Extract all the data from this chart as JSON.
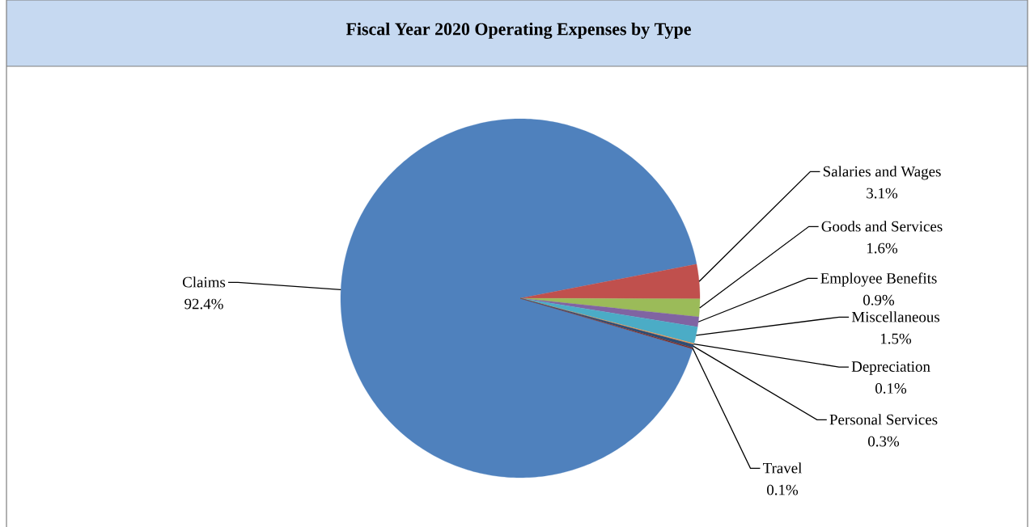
{
  "chart_data": {
    "type": "pie",
    "title": "Fiscal Year 2020 Operating Expenses by Type",
    "categories": [
      "Claims",
      "Salaries and Wages",
      "Goods and Services",
      "Employee Benefits",
      "Miscellaneous",
      "Depreciation",
      "Personal Services",
      "Travel"
    ],
    "values": [
      92.4,
      3.1,
      1.6,
      0.9,
      1.5,
      0.1,
      0.3,
      0.1
    ],
    "value_labels": [
      "92.4%",
      "3.1%",
      "1.6%",
      "0.9%",
      "1.5%",
      "0.1%",
      "0.3%",
      "0.1%"
    ],
    "colors": [
      "#4f81bd",
      "#c0504d",
      "#9bbb59",
      "#8064a2",
      "#4bacc6",
      "#f79646",
      "#2c4d75",
      "#772c2a"
    ]
  }
}
